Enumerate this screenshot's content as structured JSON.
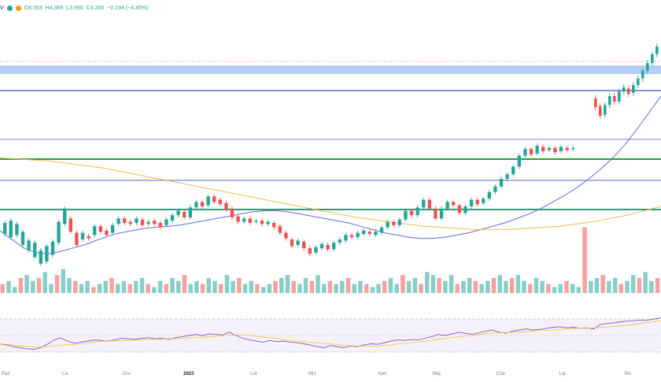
{
  "legend": {
    "symbol_suffix": "V",
    "open": "O4.353",
    "high": "H4.389",
    "low": "L3.990",
    "close": "C4.206",
    "change": "−0.194 (−4.45%)",
    "dot_colors": [
      "#26a69a",
      "#ff9800"
    ]
  },
  "colors": {
    "up": "#26a69a",
    "down": "#ef5350",
    "ma_short": "#5b6bd8",
    "ma_long": "#f5b94d",
    "hline_blue": "#3f51b5",
    "hline_green": "#21a336",
    "zone": "#b3cdf5",
    "rsi_line": "#7e57c2",
    "rsi_band": "#ede7f6"
  },
  "chart_data": {
    "type": "candlestick",
    "x_axis_labels": [
      "Paź",
      "Lis",
      "Gru",
      "2023",
      "Lut",
      "Mrz",
      "Kwi",
      "Maj",
      "Cze",
      "Lip",
      "Sie"
    ],
    "candles": [
      [
        -0.5,
        0.5
      ],
      [
        -0.8,
        0.7
      ],
      [
        -0.6,
        0.4
      ],
      [
        -1.5,
        -0.3
      ],
      [
        -2.0,
        -1.1
      ],
      [
        -2.6,
        -1.3
      ],
      [
        -3.2,
        -2.0
      ],
      [
        -3.0,
        -1.6
      ],
      [
        -2.4,
        -1.2
      ],
      [
        -1.3,
        0.6
      ],
      [
        0.4,
        1.8
      ],
      [
        0.9,
        -0.3
      ],
      [
        -0.4,
        -1.5
      ],
      [
        -1.0,
        -0.4
      ],
      [
        -0.7,
        -0.9
      ],
      [
        -0.6,
        0.2
      ],
      [
        0.2,
        -0.3
      ],
      [
        -0.2,
        -0.6
      ],
      [
        -0.4,
        0.3
      ],
      [
        0.4,
        0.9
      ],
      [
        0.9,
        0.5
      ],
      [
        0.6,
        0.4
      ],
      [
        0.5,
        0.9
      ],
      [
        0.8,
        0.3
      ],
      [
        0.4,
        0.6
      ],
      [
        0.7,
        0.4
      ],
      [
        0.5,
        0.1
      ],
      [
        0.3,
        0.8
      ],
      [
        0.7,
        1.2
      ],
      [
        1.2,
        1.6
      ],
      [
        1.5,
        1.0
      ],
      [
        1.0,
        1.9
      ],
      [
        1.9,
        2.4
      ],
      [
        2.4,
        2.0
      ],
      [
        2.1,
        2.9
      ],
      [
        2.9,
        2.4
      ],
      [
        2.6,
        2.2
      ],
      [
        2.3,
        1.7
      ],
      [
        1.8,
        1.0
      ],
      [
        1.1,
        0.6
      ],
      [
        0.6,
        0.9
      ],
      [
        0.9,
        0.5
      ],
      [
        0.6,
        0.7
      ],
      [
        0.7,
        0.4
      ],
      [
        0.4,
        0.6
      ],
      [
        0.5,
        0.1
      ],
      [
        0.2,
        -0.4
      ],
      [
        -0.4,
        -0.9
      ],
      [
        -1.0,
        -1.6
      ],
      [
        -1.5,
        -1.1
      ],
      [
        -1.2,
        -1.8
      ],
      [
        -1.8,
        -2.3
      ],
      [
        -2.2,
        -1.7
      ],
      [
        -1.8,
        -1.4
      ],
      [
        -1.5,
        -1.9
      ],
      [
        -1.9,
        -1.3
      ],
      [
        -1.3,
        -1.0
      ],
      [
        -1.1,
        -0.6
      ],
      [
        -0.6,
        -0.8
      ],
      [
        -0.8,
        -0.4
      ],
      [
        -0.5,
        -0.2
      ],
      [
        -0.3,
        -0.5
      ],
      [
        -0.6,
        -0.3
      ],
      [
        -0.4,
        0.1
      ],
      [
        0.1,
        0.6
      ],
      [
        0.6,
        0.3
      ],
      [
        0.3,
        0.8
      ],
      [
        0.8,
        1.6
      ],
      [
        1.6,
        1.2
      ],
      [
        1.2,
        1.9
      ],
      [
        1.9,
        2.6
      ],
      [
        2.6,
        1.8
      ],
      [
        1.8,
        0.9
      ],
      [
        0.9,
        1.8
      ],
      [
        1.8,
        2.4
      ],
      [
        2.4,
        2.1
      ],
      [
        2.1,
        1.4
      ],
      [
        1.4,
        2.0
      ],
      [
        2.0,
        2.6
      ],
      [
        2.6,
        2.2
      ],
      [
        2.3,
        2.7
      ],
      [
        2.7,
        3.3
      ],
      [
        3.3,
        3.8
      ],
      [
        3.8,
        4.5
      ],
      [
        4.5,
        4.9
      ],
      [
        4.9,
        5.6
      ],
      [
        5.6,
        6.6
      ],
      [
        6.6,
        7.2
      ],
      [
        7.2,
        6.7
      ],
      [
        6.8,
        7.5
      ],
      [
        7.4,
        7.0
      ],
      [
        7.1,
        7.3
      ],
      [
        7.3,
        6.9
      ],
      [
        7.0,
        7.4
      ],
      [
        7.3,
        7.1
      ],
      [
        7.2,
        7.3
      ]
    ],
    "gap_candles": [
      [
        11.8,
        11.0
      ],
      [
        11.1,
        10.2
      ],
      [
        10.3,
        11.2
      ],
      [
        11.2,
        12.0
      ],
      [
        12.0,
        11.5
      ],
      [
        11.5,
        12.4
      ],
      [
        12.4,
        12.8
      ],
      [
        12.7,
        12.2
      ],
      [
        12.3,
        13.0
      ],
      [
        13.0,
        13.6
      ],
      [
        13.6,
        14.3
      ],
      [
        14.3,
        15.0
      ],
      [
        15.0,
        15.8
      ],
      [
        15.8,
        16.5
      ]
    ],
    "volume": [
      3,
      4,
      2,
      5,
      6,
      4,
      5,
      7,
      3,
      6,
      8,
      5,
      4,
      3,
      4,
      2,
      3,
      4,
      5,
      3,
      4,
      3,
      4,
      5,
      3,
      2,
      4,
      3,
      5,
      4,
      6,
      3,
      4,
      3,
      5,
      4,
      3,
      6,
      4,
      5,
      3,
      4,
      3,
      2,
      3,
      4,
      5,
      6,
      4,
      3,
      5,
      4,
      6,
      3,
      4,
      3,
      4,
      5,
      3,
      4,
      3,
      2,
      3,
      4,
      5,
      3,
      6,
      4,
      5,
      3,
      7,
      6,
      5,
      4,
      6,
      3,
      4,
      5,
      4,
      3,
      4,
      5,
      6,
      4,
      5,
      6,
      4,
      3,
      5,
      4,
      3,
      2,
      3,
      4,
      3,
      2,
      22,
      4,
      5,
      6,
      4,
      5,
      3,
      4,
      6,
      5,
      7,
      4,
      5
    ],
    "rsi": [
      45,
      43,
      40,
      38,
      36,
      35,
      38,
      44,
      52,
      56,
      50,
      46,
      48,
      50,
      52,
      51,
      50,
      52,
      55,
      54,
      53,
      55,
      56,
      54,
      55,
      53,
      56,
      58,
      60,
      62,
      60,
      63,
      62,
      61,
      66,
      60,
      55,
      52,
      50,
      48,
      51,
      49,
      50,
      48,
      47,
      45,
      43,
      40,
      38,
      42,
      40,
      38,
      41,
      40,
      43,
      45,
      44,
      47,
      50,
      52,
      51,
      53,
      52,
      55,
      58,
      62,
      60,
      63,
      66,
      64,
      62,
      65,
      68,
      70,
      66,
      64,
      68,
      70,
      72,
      70,
      71,
      73,
      75,
      76,
      74,
      75,
      73,
      74,
      72,
      80,
      82,
      83,
      85,
      86,
      87,
      88,
      88,
      90,
      92
    ],
    "ma_short": [
      -0.2,
      -1.0,
      -1.8,
      -2.2,
      -2.3,
      -2.1,
      -1.8,
      -1.5,
      -1.1,
      -0.7,
      -0.4,
      -0.2,
      0.0,
      0.1,
      0.2,
      0.3,
      0.5,
      0.7,
      0.9,
      1.1,
      1.3,
      1.5,
      1.6,
      1.6,
      1.5,
      1.3,
      1.1,
      0.9,
      0.7,
      0.5,
      0.2,
      -0.1,
      -0.4,
      -0.6,
      -0.8,
      -0.9,
      -0.9,
      -0.8,
      -0.6,
      -0.4,
      -0.1,
      0.2,
      0.5,
      0.9,
      1.3,
      1.8,
      2.4,
      3.0,
      3.7,
      4.5,
      5.4,
      6.4,
      7.6,
      9.0,
      10.5,
      12.0
    ],
    "ma_long": [
      6.4,
      6.3,
      6.2,
      6.1,
      5.9,
      5.7,
      5.5,
      5.2,
      4.9,
      4.6,
      4.3,
      4.0,
      3.7,
      3.4,
      3.1,
      2.8,
      2.5,
      2.2,
      1.9,
      1.6,
      1.3,
      1.0,
      0.8,
      0.6,
      0.4,
      0.2,
      0.1,
      0.0,
      -0.1,
      -0.1,
      -0.1,
      0.0,
      0.1,
      0.2,
      0.4,
      0.6,
      0.9,
      1.2,
      1.6,
      2.0
    ]
  }
}
